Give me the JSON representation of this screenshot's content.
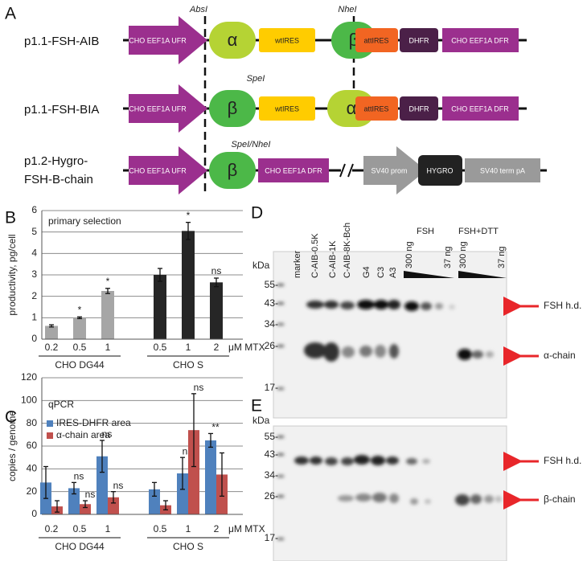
{
  "diagram": {
    "panel": "A",
    "sites": [
      "AbsI",
      "NheI",
      "SpeI",
      "SpeI/NheI"
    ],
    "constructs": [
      {
        "name": "p1.1-FSH-AIB",
        "elements": [
          "CHO EEF1A UFR",
          "α",
          "wtIRES",
          "β",
          "attIRES",
          "DHFR",
          "CHO EEF1A DFR"
        ]
      },
      {
        "name": "p1.1-FSH-BIA",
        "elements": [
          "CHO EEF1A UFR",
          "β",
          "wtIRES",
          "α",
          "attIRES",
          "DHFR",
          "CHO EEF1A DFR"
        ]
      },
      {
        "name": [
          "p1.2-Hygro-",
          "FSH-B-chain"
        ],
        "elements": [
          "CHO EEF1A UFR",
          "β",
          "CHO EEF1A DFR",
          "SV40 prom",
          "HYGRO",
          "SV40 term pA"
        ]
      }
    ]
  },
  "chart_data": [
    {
      "type": "bar",
      "panel": "B",
      "ylabel": "productivity, pg/cell",
      "title": "primary selection",
      "xlabel": "μM MTX",
      "groups": [
        {
          "name": "CHO DG44",
          "color": "#a6a6a6",
          "categories": [
            "0.2",
            "0.5",
            "1"
          ]
        },
        {
          "name": "CHO S",
          "color": "#262626",
          "categories": [
            "0.5",
            "1",
            "2"
          ]
        }
      ],
      "values": [
        0.62,
        1.0,
        2.25,
        3.0,
        5.05,
        2.65
      ],
      "errors": [
        0.05,
        0.04,
        0.12,
        0.3,
        0.4,
        0.2
      ],
      "annotations": [
        null,
        "*",
        "*",
        null,
        "*",
        "ns"
      ],
      "ylim": [
        0,
        6
      ],
      "yticks": [
        0,
        1,
        2,
        3,
        4,
        5,
        6
      ],
      "grid": true
    },
    {
      "type": "grouped-bar",
      "panel": "C",
      "ylabel": "copies / genome",
      "title": "qPCR",
      "xlabel": "μM MTX",
      "groups": [
        {
          "name": "CHO DG44",
          "categories": [
            "0.2",
            "0.5",
            "1"
          ]
        },
        {
          "name": "CHO S",
          "categories": [
            "0.5",
            "1",
            "2"
          ]
        }
      ],
      "series": [
        {
          "name": "IRES-DHFR area",
          "color": "#4f81bd",
          "values": [
            28,
            23,
            51,
            22,
            36,
            65
          ],
          "errors": [
            14,
            5,
            14,
            6,
            14,
            6
          ],
          "annotations": [
            null,
            "ns",
            "ns",
            null,
            "ns",
            "**"
          ]
        },
        {
          "name": "α-chain area",
          "color": "#c0504d",
          "values": [
            7,
            9,
            15,
            8,
            74,
            35
          ],
          "errors": [
            5,
            3,
            5,
            4,
            32,
            19
          ],
          "annotations": [
            null,
            "ns",
            "ns",
            null,
            "ns",
            null
          ]
        }
      ],
      "ylim": [
        0,
        120
      ],
      "yticks": [
        0,
        20,
        40,
        60,
        80,
        100,
        120
      ],
      "grid": true
    }
  ],
  "blots": [
    {
      "panel": "D",
      "unit": "kDa",
      "lanes": [
        "marker",
        "C-AIB-0.5K",
        "C-AIB-1K",
        "C-AIB-8K-Bch",
        "G4",
        "C3",
        "A3"
      ],
      "standards": [
        "FSH",
        "FSH+DTT"
      ],
      "amounts": [
        "300 ng",
        "37 ng",
        "300 ng",
        "37 ng"
      ],
      "markers": [
        "55-",
        "43-",
        "34-",
        "26-",
        "17-"
      ],
      "bands": [
        "FSH h.d.",
        "α-chain"
      ]
    },
    {
      "panel": "E",
      "unit": "kDa",
      "markers": [
        "55-",
        "43-",
        "34-",
        "26-",
        "17-"
      ],
      "bands": [
        "FSH h.d.",
        "β-chain"
      ]
    }
  ]
}
